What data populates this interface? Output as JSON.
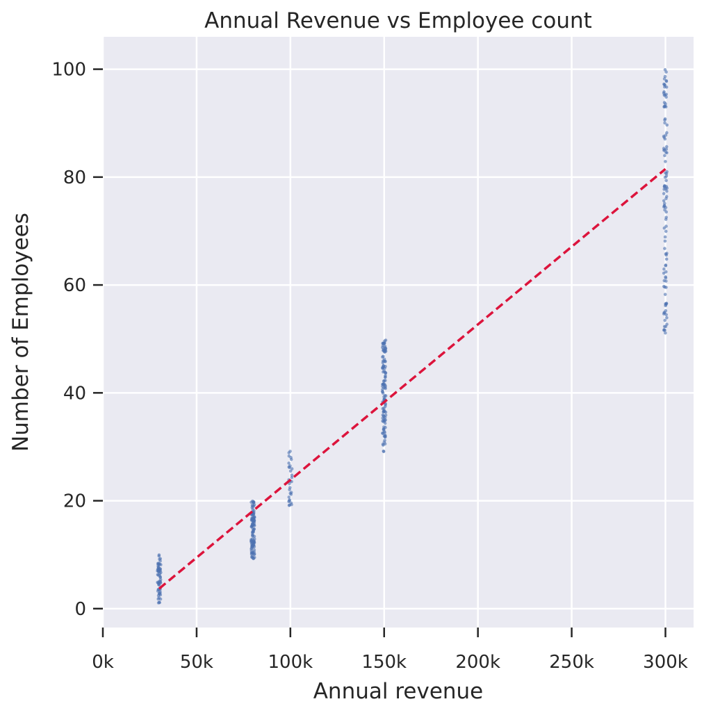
{
  "chart_data": {
    "type": "scatter",
    "title": "Annual Revenue vs Employee count",
    "xlabel": "Annual revenue",
    "ylabel": "Number of Employees",
    "xlim": [
      0,
      315000
    ],
    "ylim": [
      -3.5,
      106
    ],
    "grid": true,
    "x_ticks": [
      {
        "value": 0,
        "label": "0k"
      },
      {
        "value": 50000,
        "label": "50k"
      },
      {
        "value": 100000,
        "label": "100k"
      },
      {
        "value": 150000,
        "label": "150k"
      },
      {
        "value": 200000,
        "label": "200k"
      },
      {
        "value": 250000,
        "label": "250k"
      },
      {
        "value": 300000,
        "label": "300k"
      }
    ],
    "y_ticks": [
      {
        "value": 0,
        "label": "0"
      },
      {
        "value": 20,
        "label": "20"
      },
      {
        "value": 40,
        "label": "40"
      },
      {
        "value": 60,
        "label": "60"
      },
      {
        "value": 80,
        "label": "80"
      },
      {
        "value": 100,
        "label": "100"
      }
    ],
    "clusters": [
      {
        "x": 30000,
        "y_min": 1,
        "y_max": 10,
        "count": 60
      },
      {
        "x": 80000,
        "y_min": 9,
        "y_max": 20,
        "count": 110
      },
      {
        "x": 100000,
        "y_min": 19,
        "y_max": 30,
        "count": 30
      },
      {
        "x": 150000,
        "y_min": 29,
        "y_max": 50,
        "count": 120
      },
      {
        "x": 300000,
        "y_min": 51,
        "y_max": 101,
        "count": 110
      }
    ],
    "trend_line": {
      "x": [
        30000,
        300000
      ],
      "y": [
        3.7,
        81.5
      ],
      "style": "dashed"
    },
    "colors": {
      "points": "#4c72b0",
      "trend": "#dc143c",
      "background": "#eaeaf2",
      "grid": "#ffffff"
    }
  }
}
